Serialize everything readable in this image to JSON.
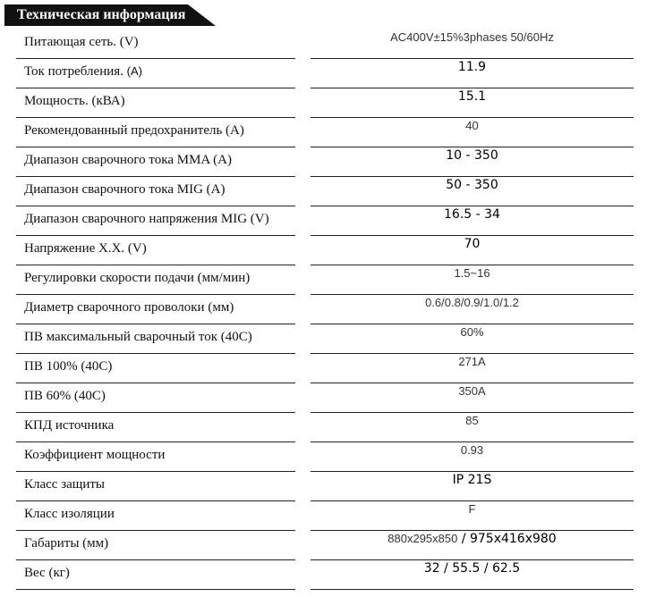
{
  "title": "Техническая информация",
  "rows": [
    {
      "label": "Питающая сеть. (V)",
      "value": "AC400V±15%3phases 50/60Hz",
      "style": "light"
    },
    {
      "label": "Ток потребления.",
      "unit": "(A)",
      "value": "11.9",
      "style": "dark"
    },
    {
      "label": "Мощность. (кВА)",
      "value": "15.1",
      "style": "dark"
    },
    {
      "label": "Рекомендованный предохранитель (A)",
      "value": "40",
      "style": "light"
    },
    {
      "label": "Диапазон сварочного тока  MMA (A)",
      "value": "10 - 350",
      "style": "dark"
    },
    {
      "label": "Диапазон сварочного тока  MIG (A)",
      "value": "50 - 350",
      "style": "dark"
    },
    {
      "label": "Диапазон сварочного напряжения  MIG (V)",
      "value": "16.5 - 34",
      "style": "dark"
    },
    {
      "label": "Напряжение Х.Х. (V)",
      "value": "70",
      "style": "dark"
    },
    {
      "label": "Регулировки скорости подачи (мм/мин)",
      "value": "1.5~16",
      "style": "light"
    },
    {
      "label": "Диаметр сварочного проволоки (мм)",
      "value": "0.6/0.8/0.9/1.0/1.2",
      "style": "light"
    },
    {
      "label": "ПВ максимальный сварочный ток (40С)",
      "value": "60%",
      "style": "light"
    },
    {
      "label": "ПВ 100% (40С)",
      "value": "271A",
      "style": "light"
    },
    {
      "label": "ПВ 60% (40С)",
      "value": "350A",
      "style": "light"
    },
    {
      "label": "КПД источника",
      "value": "85",
      "style": "light"
    },
    {
      "label": "Коэффициент мощности",
      "value": "0.93",
      "style": "light"
    },
    {
      "label": "Класс защиты",
      "value": "IP 21S",
      "style": "dark"
    },
    {
      "label": "Класс изоляции",
      "value": "F",
      "style": "light"
    },
    {
      "label": "Габариты (мм)",
      "value_a": "880x295x850",
      "value": " / 975x416x980",
      "style": "dark"
    },
    {
      "label": "Вес (кг)",
      "value": "32 / 55.5 / 62.5",
      "style": "dark"
    }
  ]
}
